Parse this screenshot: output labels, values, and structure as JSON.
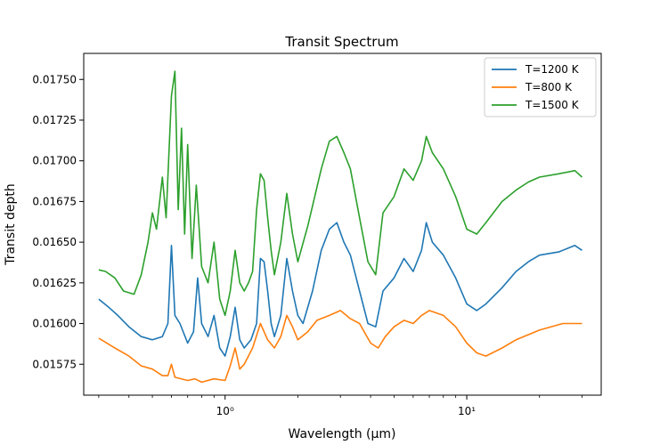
{
  "chart_data": {
    "type": "line",
    "title": "Transit Spectrum",
    "xlabel": "Wavelength (μm)",
    "ylabel": "Transit depth",
    "xscale": "log",
    "xlim": [
      0.26,
      36
    ],
    "ylim": [
      0.01556,
      0.01766
    ],
    "x_ticks": [
      {
        "value": 1,
        "label": "10⁰"
      },
      {
        "value": 10,
        "label": "10¹"
      }
    ],
    "y_ticks": [
      {
        "value": 0.01575,
        "label": "0.01575"
      },
      {
        "value": 0.016,
        "label": "0.01600"
      },
      {
        "value": 0.01625,
        "label": "0.01625"
      },
      {
        "value": 0.0165,
        "label": "0.01650"
      },
      {
        "value": 0.01675,
        "label": "0.01675"
      },
      {
        "value": 0.017,
        "label": "0.01700"
      },
      {
        "value": 0.01725,
        "label": "0.01725"
      },
      {
        "value": 0.0175,
        "label": "0.01750"
      }
    ],
    "legend_position": "top-right",
    "grid": false,
    "series": [
      {
        "name": "T=1200 K",
        "color": "#1f77b4",
        "points": [
          [
            0.3,
            0.01615
          ],
          [
            0.33,
            0.0161
          ],
          [
            0.36,
            0.01605
          ],
          [
            0.4,
            0.01598
          ],
          [
            0.45,
            0.01592
          ],
          [
            0.5,
            0.0159
          ],
          [
            0.55,
            0.01592
          ],
          [
            0.58,
            0.016
          ],
          [
            0.6,
            0.01648
          ],
          [
            0.62,
            0.01605
          ],
          [
            0.65,
            0.016
          ],
          [
            0.7,
            0.01588
          ],
          [
            0.74,
            0.01595
          ],
          [
            0.77,
            0.01628
          ],
          [
            0.8,
            0.016
          ],
          [
            0.85,
            0.01592
          ],
          [
            0.9,
            0.01605
          ],
          [
            0.95,
            0.01585
          ],
          [
            1.0,
            0.0158
          ],
          [
            1.05,
            0.01592
          ],
          [
            1.1,
            0.0161
          ],
          [
            1.15,
            0.0159
          ],
          [
            1.2,
            0.01585
          ],
          [
            1.28,
            0.0159
          ],
          [
            1.35,
            0.016
          ],
          [
            1.4,
            0.0164
          ],
          [
            1.45,
            0.01638
          ],
          [
            1.5,
            0.0162
          ],
          [
            1.55,
            0.016
          ],
          [
            1.6,
            0.01592
          ],
          [
            1.7,
            0.01605
          ],
          [
            1.8,
            0.0164
          ],
          [
            1.9,
            0.0162
          ],
          [
            2.0,
            0.01605
          ],
          [
            2.1,
            0.016
          ],
          [
            2.3,
            0.0162
          ],
          [
            2.5,
            0.01645
          ],
          [
            2.7,
            0.01658
          ],
          [
            2.9,
            0.01662
          ],
          [
            3.1,
            0.0165
          ],
          [
            3.3,
            0.01642
          ],
          [
            3.6,
            0.0162
          ],
          [
            3.9,
            0.016
          ],
          [
            4.2,
            0.01598
          ],
          [
            4.5,
            0.0162
          ],
          [
            5.0,
            0.01628
          ],
          [
            5.5,
            0.0164
          ],
          [
            6.0,
            0.01632
          ],
          [
            6.5,
            0.01645
          ],
          [
            6.8,
            0.01662
          ],
          [
            7.2,
            0.0165
          ],
          [
            8.0,
            0.01642
          ],
          [
            9.0,
            0.01628
          ],
          [
            10.0,
            0.01612
          ],
          [
            11.0,
            0.01608
          ],
          [
            12.0,
            0.01612
          ],
          [
            14.0,
            0.01622
          ],
          [
            16.0,
            0.01632
          ],
          [
            18.0,
            0.01638
          ],
          [
            20.0,
            0.01642
          ],
          [
            24.0,
            0.01644
          ],
          [
            28.0,
            0.01648
          ],
          [
            30.0,
            0.01645
          ]
        ]
      },
      {
        "name": "T=800 K",
        "color": "#ff7f0e",
        "points": [
          [
            0.3,
            0.01591
          ],
          [
            0.35,
            0.01585
          ],
          [
            0.4,
            0.0158
          ],
          [
            0.45,
            0.01574
          ],
          [
            0.5,
            0.01572
          ],
          [
            0.55,
            0.01568
          ],
          [
            0.58,
            0.01568
          ],
          [
            0.6,
            0.01575
          ],
          [
            0.62,
            0.01567
          ],
          [
            0.7,
            0.01565
          ],
          [
            0.75,
            0.01566
          ],
          [
            0.8,
            0.01564
          ],
          [
            0.9,
            0.01566
          ],
          [
            1.0,
            0.01565
          ],
          [
            1.05,
            0.01574
          ],
          [
            1.1,
            0.01585
          ],
          [
            1.15,
            0.01572
          ],
          [
            1.2,
            0.01575
          ],
          [
            1.3,
            0.01585
          ],
          [
            1.4,
            0.016
          ],
          [
            1.5,
            0.0159
          ],
          [
            1.6,
            0.01585
          ],
          [
            1.7,
            0.01592
          ],
          [
            1.8,
            0.01605
          ],
          [
            1.9,
            0.01598
          ],
          [
            2.0,
            0.0159
          ],
          [
            2.2,
            0.01595
          ],
          [
            2.4,
            0.01602
          ],
          [
            2.7,
            0.01605
          ],
          [
            3.0,
            0.01608
          ],
          [
            3.3,
            0.01603
          ],
          [
            3.6,
            0.016
          ],
          [
            4.0,
            0.01588
          ],
          [
            4.3,
            0.01585
          ],
          [
            4.6,
            0.01592
          ],
          [
            5.0,
            0.01598
          ],
          [
            5.5,
            0.01602
          ],
          [
            6.0,
            0.016
          ],
          [
            6.5,
            0.01605
          ],
          [
            7.0,
            0.01608
          ],
          [
            8.0,
            0.01605
          ],
          [
            9.0,
            0.01598
          ],
          [
            10.0,
            0.01588
          ],
          [
            11.0,
            0.01582
          ],
          [
            12.0,
            0.0158
          ],
          [
            14.0,
            0.01585
          ],
          [
            16.0,
            0.0159
          ],
          [
            20.0,
            0.01596
          ],
          [
            25.0,
            0.016
          ],
          [
            30.0,
            0.016
          ]
        ]
      },
      {
        "name": "T=1500 K",
        "color": "#2ca02c",
        "points": [
          [
            0.3,
            0.01633
          ],
          [
            0.32,
            0.01632
          ],
          [
            0.35,
            0.01628
          ],
          [
            0.38,
            0.0162
          ],
          [
            0.42,
            0.01618
          ],
          [
            0.45,
            0.0163
          ],
          [
            0.48,
            0.0165
          ],
          [
            0.5,
            0.01668
          ],
          [
            0.52,
            0.01658
          ],
          [
            0.55,
            0.0169
          ],
          [
            0.57,
            0.01665
          ],
          [
            0.6,
            0.0174
          ],
          [
            0.62,
            0.01755
          ],
          [
            0.64,
            0.0167
          ],
          [
            0.66,
            0.0172
          ],
          [
            0.68,
            0.01655
          ],
          [
            0.7,
            0.0171
          ],
          [
            0.73,
            0.0164
          ],
          [
            0.76,
            0.01685
          ],
          [
            0.8,
            0.01635
          ],
          [
            0.85,
            0.01625
          ],
          [
            0.9,
            0.0165
          ],
          [
            0.95,
            0.01615
          ],
          [
            1.0,
            0.01605
          ],
          [
            1.05,
            0.0162
          ],
          [
            1.1,
            0.01645
          ],
          [
            1.15,
            0.01625
          ],
          [
            1.2,
            0.0162
          ],
          [
            1.25,
            0.01625
          ],
          [
            1.3,
            0.01632
          ],
          [
            1.35,
            0.0167
          ],
          [
            1.4,
            0.01692
          ],
          [
            1.45,
            0.01688
          ],
          [
            1.5,
            0.01665
          ],
          [
            1.55,
            0.01645
          ],
          [
            1.6,
            0.0163
          ],
          [
            1.7,
            0.0165
          ],
          [
            1.8,
            0.0168
          ],
          [
            1.9,
            0.01655
          ],
          [
            2.0,
            0.01638
          ],
          [
            2.2,
            0.0166
          ],
          [
            2.5,
            0.01695
          ],
          [
            2.7,
            0.01712
          ],
          [
            2.9,
            0.01715
          ],
          [
            3.1,
            0.01705
          ],
          [
            3.3,
            0.01695
          ],
          [
            3.6,
            0.01665
          ],
          [
            3.9,
            0.01638
          ],
          [
            4.2,
            0.0163
          ],
          [
            4.5,
            0.01668
          ],
          [
            5.0,
            0.01678
          ],
          [
            5.5,
            0.01695
          ],
          [
            6.0,
            0.01688
          ],
          [
            6.5,
            0.017
          ],
          [
            6.8,
            0.01715
          ],
          [
            7.2,
            0.01705
          ],
          [
            8.0,
            0.01695
          ],
          [
            9.0,
            0.01678
          ],
          [
            10.0,
            0.01658
          ],
          [
            11.0,
            0.01655
          ],
          [
            12.0,
            0.01662
          ],
          [
            14.0,
            0.01675
          ],
          [
            16.0,
            0.01682
          ],
          [
            18.0,
            0.01687
          ],
          [
            20.0,
            0.0169
          ],
          [
            24.0,
            0.01692
          ],
          [
            28.0,
            0.01694
          ],
          [
            30.0,
            0.0169
          ]
        ]
      }
    ]
  }
}
